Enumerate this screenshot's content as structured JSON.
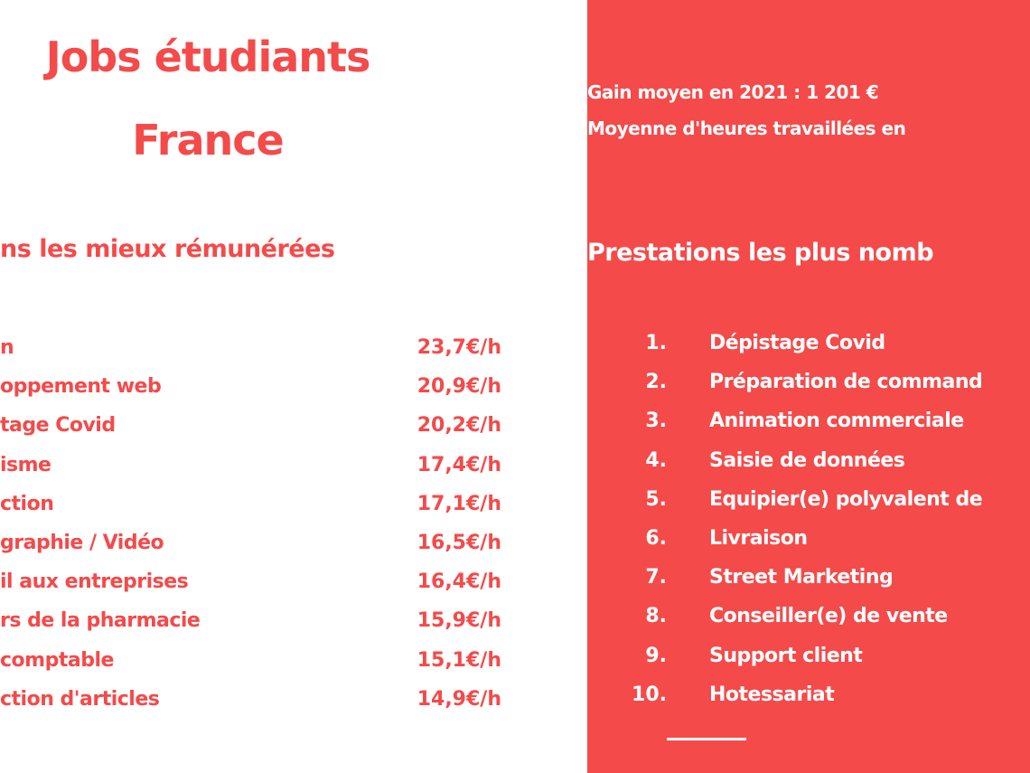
{
  "left": {
    "title": [
      "Jobs étudiants",
      "France"
    ],
    "heading": "ns les mieux rémunérées",
    "rows": [
      [
        "n",
        "23,7€/h"
      ],
      [
        "oppement web",
        "20,9€/h"
      ],
      [
        "tage Covid",
        "20,2€/h"
      ],
      [
        "isme",
        "17,4€/h"
      ],
      [
        "ction",
        "17,1€/h"
      ],
      [
        "graphie / Vidéo",
        "16,5€/h"
      ],
      [
        "il aux entreprises",
        "16,4€/h"
      ],
      [
        "rs de la pharmacie",
        "15,9€/h"
      ],
      [
        "comptable",
        "15,1€/h"
      ],
      [
        "ction d'articles",
        "14,9€/h"
      ]
    ]
  },
  "right": {
    "stats": [
      "Gain moyen en 2021 : 1 201 €",
      "Moyenne d'heures travaillées en"
    ],
    "heading": "Prestations les plus nomb",
    "items": [
      [
        "1.",
        "Dépistage Covid"
      ],
      [
        "2.",
        "Préparation de command"
      ],
      [
        "3.",
        "Animation commerciale"
      ],
      [
        "4.",
        "Saisie de données"
      ],
      [
        "5.",
        "Equipier(e) polyvalent de"
      ],
      [
        "6.",
        "Livraison"
      ],
      [
        "7.",
        "Street Marketing"
      ],
      [
        "8.",
        "Conseiller(e) de vente"
      ],
      [
        "9.",
        "Support client"
      ],
      [
        "10.",
        "Hotessariat"
      ]
    ]
  }
}
